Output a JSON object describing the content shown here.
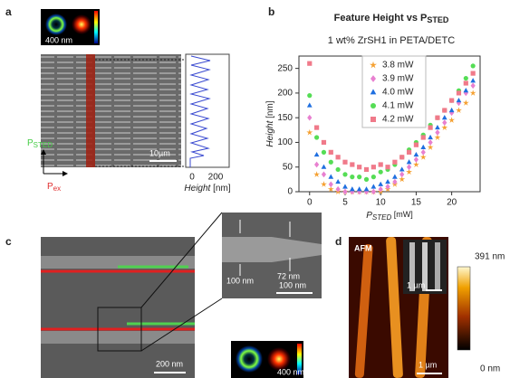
{
  "chart_data": {
    "type": "scatter",
    "title": [
      "Feature Height vs P",
      "STED"
    ],
    "subtitle": "1 wt% ZrSH1 in PETA/DETC",
    "xlabel": [
      "P",
      "STED",
      " [mW]"
    ],
    "ylabel": [
      "Height",
      " [nm]"
    ],
    "x": [
      0,
      1,
      2,
      3,
      4,
      5,
      6,
      7,
      8,
      9,
      10,
      11,
      12,
      13,
      14,
      15,
      16,
      17,
      18,
      19,
      20,
      21,
      22,
      23
    ],
    "xlim": [
      -1.5,
      24
    ],
    "xticks": [
      0,
      5,
      10,
      15,
      20
    ],
    "ylim": [
      0,
      275
    ],
    "yticks": [
      0,
      50,
      100,
      150,
      200,
      250
    ],
    "legend": "upper left",
    "series": [
      {
        "name": "3.8 mW",
        "color": "#f5a030",
        "marker": "star",
        "values": [
          120,
          35,
          15,
          5,
          0,
          0,
          0,
          0,
          0,
          0,
          0,
          5,
          15,
          25,
          40,
          55,
          70,
          90,
          110,
          130,
          145,
          165,
          180,
          200
        ]
      },
      {
        "name": "3.9 mW",
        "color": "#e880d0",
        "marker": "diamond",
        "values": [
          150,
          55,
          35,
          15,
          5,
          0,
          0,
          0,
          0,
          0,
          5,
          10,
          20,
          35,
          50,
          65,
          80,
          100,
          120,
          140,
          160,
          180,
          200,
          215
        ]
      },
      {
        "name": "4.0 mW",
        "color": "#1f6fe0",
        "marker": "triangle",
        "values": [
          175,
          75,
          50,
          30,
          20,
          10,
          5,
          5,
          5,
          10,
          15,
          20,
          30,
          45,
          60,
          75,
          90,
          110,
          130,
          150,
          165,
          185,
          205,
          225
        ]
      },
      {
        "name": "4.1 mW",
        "color": "#55dd55",
        "marker": "circle",
        "values": [
          195,
          110,
          80,
          60,
          45,
          35,
          30,
          30,
          25,
          30,
          40,
          45,
          55,
          70,
          85,
          100,
          115,
          135,
          150,
          165,
          185,
          205,
          230,
          255
        ]
      },
      {
        "name": "4.2 mW",
        "color": "#f07a8a",
        "marker": "square",
        "values": [
          260,
          130,
          100,
          80,
          70,
          60,
          55,
          50,
          45,
          50,
          55,
          50,
          60,
          70,
          80,
          95,
          110,
          130,
          150,
          165,
          185,
          200,
          220,
          240
        ]
      }
    ]
  },
  "panels": {
    "a": {
      "label": "a",
      "scale_top": "400 nm",
      "scale": "10µm",
      "profile_ticks": [
        0,
        200
      ],
      "profile_label": [
        "Height",
        " [nm]"
      ],
      "p_sted": [
        "P",
        "STED"
      ],
      "p_ex": [
        "P",
        "ex"
      ]
    },
    "b": {
      "label": "b"
    },
    "c": {
      "label": "c",
      "inset_left": "100 nm",
      "inset_right": "72 nm",
      "inset_scale": "100 nm",
      "scale": "200 nm",
      "donut_scale": "400 nm"
    },
    "d": {
      "label": "d",
      "afm": "AFM",
      "inset_scale": "1 µm",
      "scale": "1 µm",
      "cbar_max": "391 nm",
      "cbar_min": "0 nm"
    }
  }
}
